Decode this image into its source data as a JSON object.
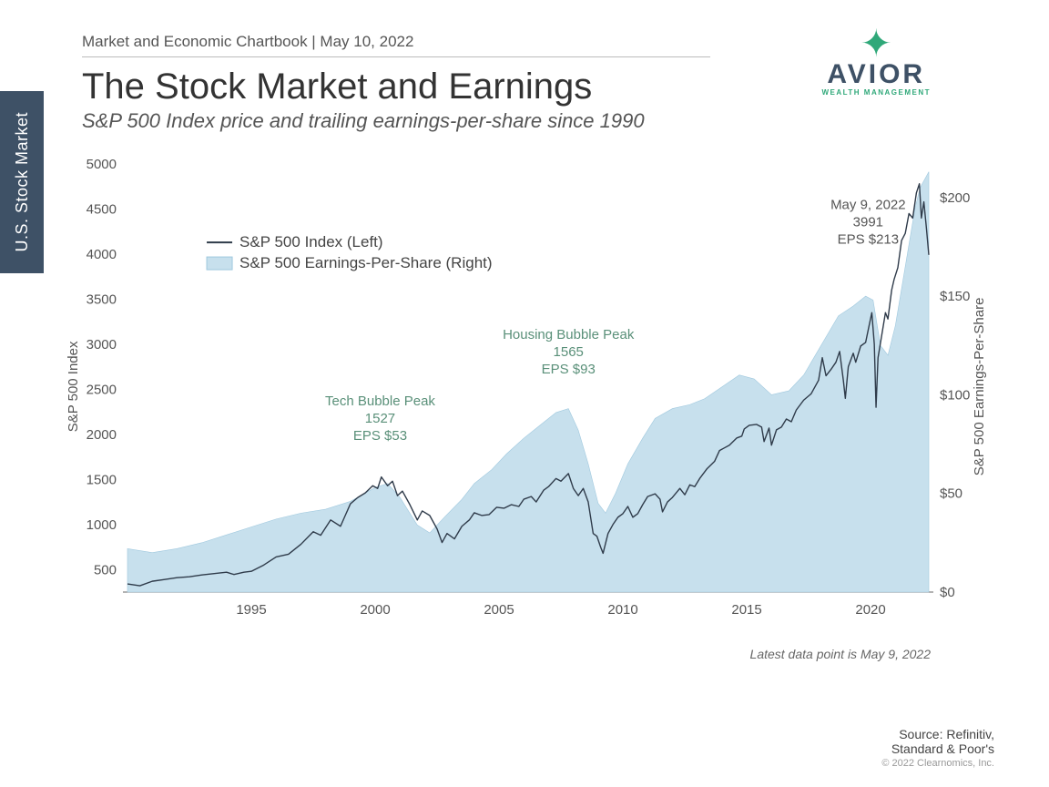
{
  "side_tab": "U.S. Stock Market",
  "header": {
    "breadcrumb": "Market and Economic Chartbook | May 10, 2022",
    "title": "The Stock Market and Earnings",
    "subtitle": "S&P 500 Index price and trailing earnings-per-share since 1990"
  },
  "logo": {
    "brand": "AVIOR",
    "tagline": "WEALTH MANAGEMENT"
  },
  "chart": {
    "type": "dual-axis-line-area",
    "x_range": [
      1990,
      2022.35
    ],
    "y_left": {
      "label": "S&P 500 Index",
      "min": 250,
      "max": 5000,
      "ticks": [
        500,
        1000,
        1500,
        2000,
        2500,
        3000,
        3500,
        4000,
        4500,
        5000
      ]
    },
    "y_right": {
      "label": "S&P 500 Earnings-Per-Share",
      "min": 0,
      "max": 217,
      "ticks": [
        0,
        50,
        100,
        150,
        200
      ],
      "tick_prefix": "$"
    },
    "x_ticks": [
      1995,
      2000,
      2005,
      2010,
      2015,
      2020
    ],
    "colors": {
      "sp500_line": "#2f3b4a",
      "eps_area": "#c7e0ed",
      "eps_area_stroke": "#9fc8de",
      "grid": "none",
      "axis": "#666666",
      "annotation": "#5a9079",
      "annotation_dark": "#555555",
      "background": "#ffffff",
      "side_tab": "#3e5166"
    },
    "line_width": 1.4,
    "legend": {
      "x": 1993.2,
      "y_top": 4130,
      "items": [
        {
          "swatch": "line",
          "color": "#2f3b4a",
          "label": "S&P 500 Index (Left)"
        },
        {
          "swatch": "area",
          "color": "#c7e0ed",
          "label": "S&P 500 Earnings-Per-Share (Right)"
        }
      ]
    },
    "annotations": [
      {
        "x": 2000.2,
        "y_top": 2320,
        "lines": [
          "Tech Bubble Peak",
          "1527",
          "EPS $53"
        ],
        "tone": "green"
      },
      {
        "x": 2007.8,
        "y_top": 3060,
        "lines": [
          "Housing Bubble Peak",
          "1565",
          "EPS $93"
        ],
        "tone": "green"
      },
      {
        "x": 2019.9,
        "y_top": 4500,
        "lines": [
          "May 9, 2022",
          "3991",
          "EPS $213"
        ],
        "tone": "dark"
      }
    ],
    "series_eps": [
      [
        1990.0,
        22
      ],
      [
        1991.0,
        20
      ],
      [
        1992.0,
        22
      ],
      [
        1993.0,
        25
      ],
      [
        1994.0,
        29
      ],
      [
        1995.0,
        33
      ],
      [
        1996.0,
        37
      ],
      [
        1997.0,
        40
      ],
      [
        1998.0,
        42
      ],
      [
        1999.0,
        46
      ],
      [
        2000.0,
        53
      ],
      [
        2000.5,
        55
      ],
      [
        2001.0,
        48
      ],
      [
        2001.7,
        34
      ],
      [
        2002.2,
        30
      ],
      [
        2002.8,
        38
      ],
      [
        2003.5,
        47
      ],
      [
        2004.0,
        55
      ],
      [
        2004.7,
        62
      ],
      [
        2005.3,
        70
      ],
      [
        2006.0,
        78
      ],
      [
        2006.7,
        85
      ],
      [
        2007.3,
        91
      ],
      [
        2007.8,
        93
      ],
      [
        2008.2,
        82
      ],
      [
        2008.6,
        65
      ],
      [
        2009.0,
        45
      ],
      [
        2009.3,
        40
      ],
      [
        2009.7,
        50
      ],
      [
        2010.2,
        65
      ],
      [
        2010.8,
        78
      ],
      [
        2011.3,
        88
      ],
      [
        2012.0,
        93
      ],
      [
        2012.7,
        95
      ],
      [
        2013.3,
        98
      ],
      [
        2014.0,
        104
      ],
      [
        2014.7,
        110
      ],
      [
        2015.3,
        108
      ],
      [
        2016.0,
        100
      ],
      [
        2016.7,
        102
      ],
      [
        2017.3,
        110
      ],
      [
        2018.0,
        125
      ],
      [
        2018.7,
        140
      ],
      [
        2019.3,
        145
      ],
      [
        2019.8,
        150
      ],
      [
        2020.1,
        148
      ],
      [
        2020.4,
        125
      ],
      [
        2020.7,
        120
      ],
      [
        2021.0,
        135
      ],
      [
        2021.4,
        165
      ],
      [
        2021.8,
        195
      ],
      [
        2022.0,
        205
      ],
      [
        2022.35,
        213
      ]
    ],
    "series_sp500": [
      [
        1990.0,
        340
      ],
      [
        1990.5,
        320
      ],
      [
        1991.0,
        370
      ],
      [
        1991.5,
        390
      ],
      [
        1992.0,
        410
      ],
      [
        1992.5,
        420
      ],
      [
        1993.0,
        440
      ],
      [
        1993.5,
        455
      ],
      [
        1994.0,
        470
      ],
      [
        1994.3,
        445
      ],
      [
        1994.7,
        470
      ],
      [
        1995.0,
        480
      ],
      [
        1995.5,
        550
      ],
      [
        1996.0,
        640
      ],
      [
        1996.5,
        670
      ],
      [
        1997.0,
        780
      ],
      [
        1997.5,
        920
      ],
      [
        1997.8,
        880
      ],
      [
        1998.2,
        1050
      ],
      [
        1998.6,
        980
      ],
      [
        1999.0,
        1230
      ],
      [
        1999.3,
        1300
      ],
      [
        1999.6,
        1350
      ],
      [
        1999.9,
        1430
      ],
      [
        2000.1,
        1400
      ],
      [
        2000.25,
        1527
      ],
      [
        2000.5,
        1430
      ],
      [
        2000.7,
        1480
      ],
      [
        2000.9,
        1320
      ],
      [
        2001.1,
        1370
      ],
      [
        2001.4,
        1220
      ],
      [
        2001.7,
        1050
      ],
      [
        2001.9,
        1150
      ],
      [
        2002.2,
        1100
      ],
      [
        2002.5,
        950
      ],
      [
        2002.7,
        800
      ],
      [
        2002.9,
        900
      ],
      [
        2003.2,
        840
      ],
      [
        2003.5,
        980
      ],
      [
        2003.8,
        1050
      ],
      [
        2004.0,
        1130
      ],
      [
        2004.3,
        1100
      ],
      [
        2004.6,
        1110
      ],
      [
        2004.9,
        1190
      ],
      [
        2005.2,
        1180
      ],
      [
        2005.5,
        1220
      ],
      [
        2005.8,
        1200
      ],
      [
        2006.0,
        1280
      ],
      [
        2006.3,
        1310
      ],
      [
        2006.5,
        1250
      ],
      [
        2006.8,
        1380
      ],
      [
        2007.0,
        1420
      ],
      [
        2007.3,
        1510
      ],
      [
        2007.5,
        1480
      ],
      [
        2007.8,
        1565
      ],
      [
        2008.0,
        1400
      ],
      [
        2008.2,
        1320
      ],
      [
        2008.4,
        1400
      ],
      [
        2008.6,
        1250
      ],
      [
        2008.8,
        900
      ],
      [
        2008.95,
        870
      ],
      [
        2009.1,
        750
      ],
      [
        2009.2,
        680
      ],
      [
        2009.4,
        900
      ],
      [
        2009.6,
        1000
      ],
      [
        2009.8,
        1080
      ],
      [
        2010.0,
        1120
      ],
      [
        2010.2,
        1200
      ],
      [
        2010.4,
        1080
      ],
      [
        2010.6,
        1120
      ],
      [
        2010.8,
        1220
      ],
      [
        2011.0,
        1310
      ],
      [
        2011.3,
        1340
      ],
      [
        2011.5,
        1280
      ],
      [
        2011.6,
        1140
      ],
      [
        2011.8,
        1250
      ],
      [
        2012.0,
        1300
      ],
      [
        2012.3,
        1400
      ],
      [
        2012.5,
        1330
      ],
      [
        2012.7,
        1440
      ],
      [
        2012.9,
        1420
      ],
      [
        2013.1,
        1510
      ],
      [
        2013.4,
        1620
      ],
      [
        2013.7,
        1700
      ],
      [
        2013.9,
        1820
      ],
      [
        2014.1,
        1850
      ],
      [
        2014.3,
        1880
      ],
      [
        2014.6,
        1960
      ],
      [
        2014.8,
        1980
      ],
      [
        2014.9,
        2060
      ],
      [
        2015.1,
        2100
      ],
      [
        2015.4,
        2110
      ],
      [
        2015.6,
        2080
      ],
      [
        2015.7,
        1920
      ],
      [
        2015.9,
        2070
      ],
      [
        2016.0,
        1880
      ],
      [
        2016.2,
        2050
      ],
      [
        2016.4,
        2080
      ],
      [
        2016.6,
        2170
      ],
      [
        2016.8,
        2140
      ],
      [
        2017.0,
        2270
      ],
      [
        2017.3,
        2380
      ],
      [
        2017.6,
        2450
      ],
      [
        2017.9,
        2600
      ],
      [
        2018.05,
        2850
      ],
      [
        2018.2,
        2650
      ],
      [
        2018.4,
        2720
      ],
      [
        2018.6,
        2800
      ],
      [
        2018.75,
        2920
      ],
      [
        2018.9,
        2600
      ],
      [
        2018.98,
        2400
      ],
      [
        2019.1,
        2750
      ],
      [
        2019.3,
        2900
      ],
      [
        2019.4,
        2800
      ],
      [
        2019.6,
        2980
      ],
      [
        2019.8,
        3020
      ],
      [
        2019.95,
        3220
      ],
      [
        2020.05,
        3350
      ],
      [
        2020.15,
        3000
      ],
      [
        2020.22,
        2300
      ],
      [
        2020.3,
        2850
      ],
      [
        2020.45,
        3100
      ],
      [
        2020.6,
        3350
      ],
      [
        2020.7,
        3280
      ],
      [
        2020.85,
        3600
      ],
      [
        2020.95,
        3720
      ],
      [
        2021.1,
        3850
      ],
      [
        2021.25,
        4150
      ],
      [
        2021.4,
        4230
      ],
      [
        2021.55,
        4450
      ],
      [
        2021.7,
        4400
      ],
      [
        2021.85,
        4680
      ],
      [
        2021.97,
        4780
      ],
      [
        2022.05,
        4400
      ],
      [
        2022.15,
        4580
      ],
      [
        2022.25,
        4300
      ],
      [
        2022.35,
        3991
      ]
    ]
  },
  "footnote": "Latest data point is May 9, 2022",
  "source": {
    "line1": "Source: Refinitiv,",
    "line2": "Standard & Poor's",
    "copyright": "© 2022 Clearnomics, Inc."
  }
}
